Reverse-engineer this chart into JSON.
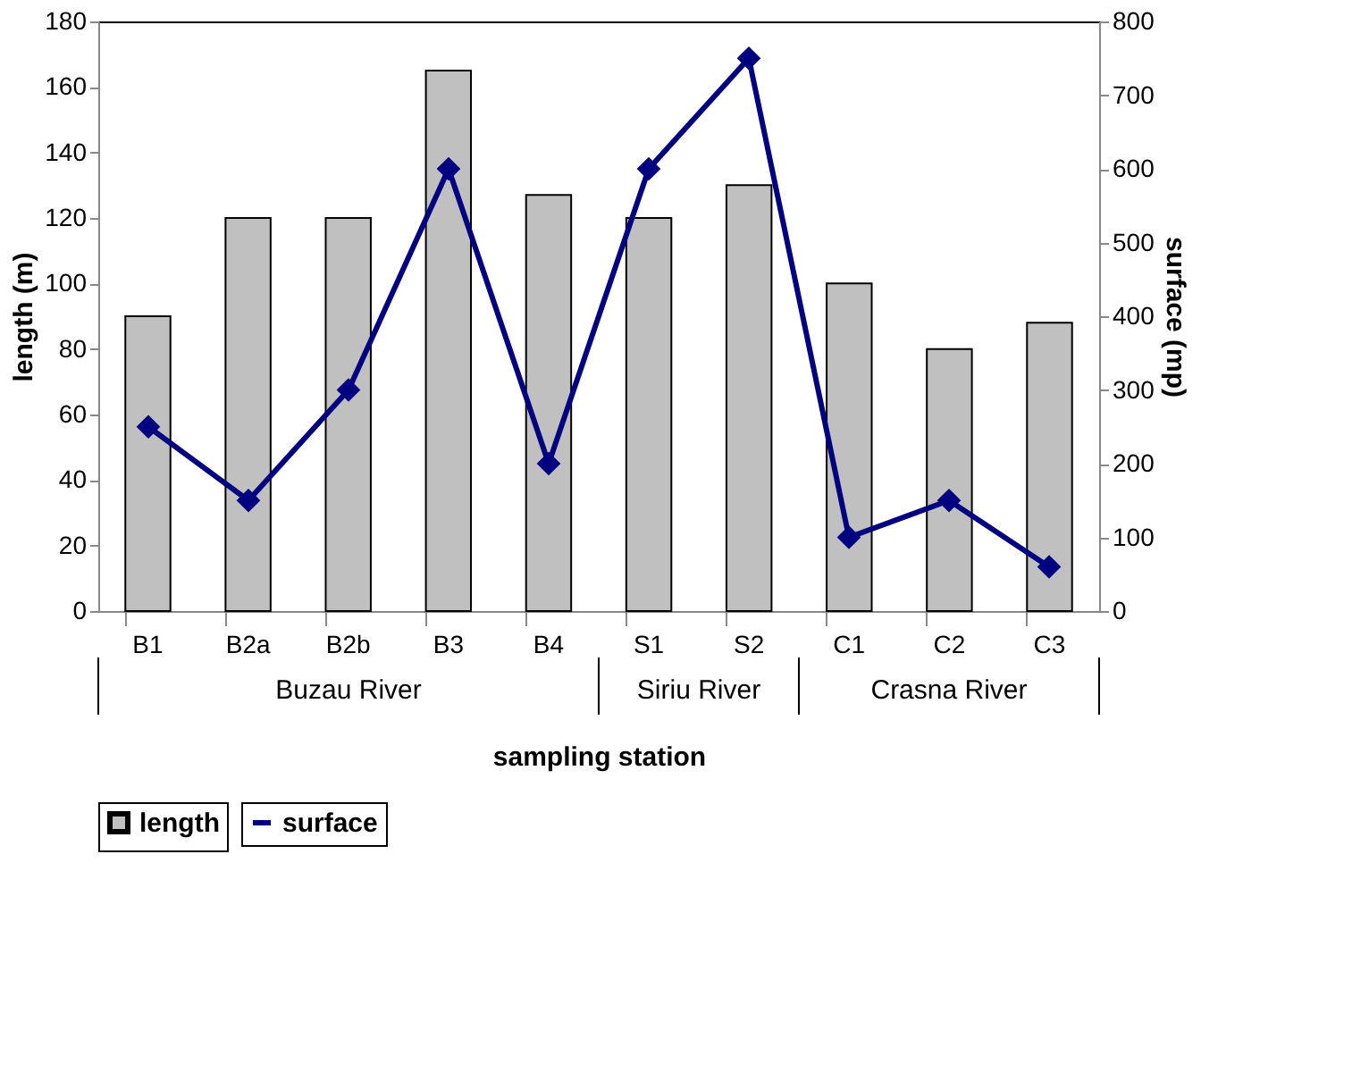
{
  "chart_data": {
    "type": "bar",
    "xlabel": "sampling station",
    "ylabel": "length (m)",
    "y2label": "surface (mp)",
    "categories": [
      "B1",
      "B2a",
      "B2b",
      "B3",
      "B4",
      "S1",
      "S2",
      "C1",
      "C2",
      "C3"
    ],
    "series": [
      {
        "name": "length",
        "color": "#c0c0c0",
        "values": [
          90,
          120,
          120,
          165,
          127,
          120,
          130,
          100,
          80,
          88
        ]
      },
      {
        "name": "surface",
        "type": "line",
        "axis": "y2",
        "color": "#000080",
        "marker": "diamond",
        "values": [
          250,
          150,
          300,
          600,
          200,
          600,
          750,
          100,
          150,
          60
        ]
      }
    ],
    "ylim": [
      0,
      180
    ],
    "yticks": [
      0,
      20,
      40,
      60,
      80,
      100,
      120,
      140,
      160,
      180
    ],
    "y2lim": [
      0,
      800
    ],
    "y2ticks": [
      0,
      100,
      200,
      300,
      400,
      500,
      600,
      700,
      800
    ],
    "annotations": [
      "Buzau River",
      "Siriu River",
      "Crasna River"
    ],
    "grid": false,
    "legend": "bottom"
  }
}
